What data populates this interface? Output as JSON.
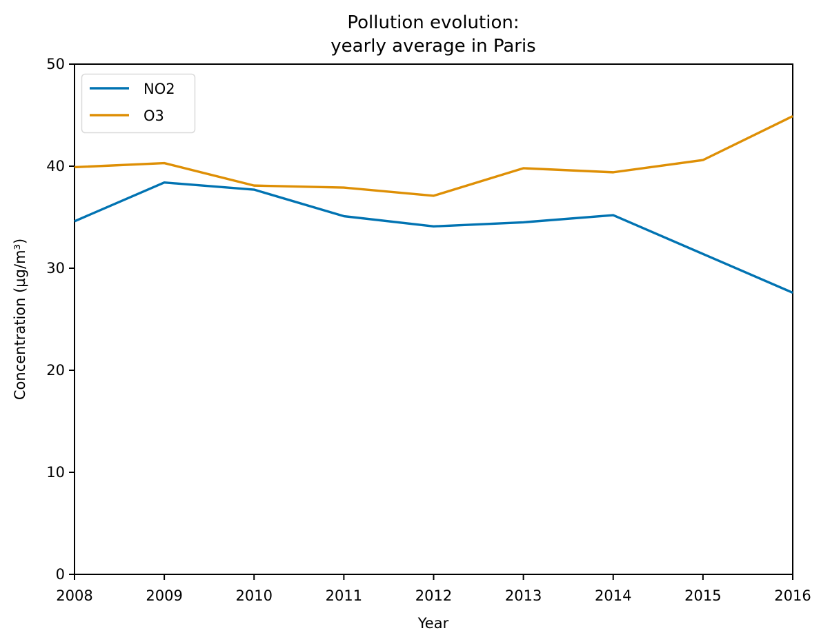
{
  "figure": {
    "background": "#ffffff",
    "title_lines": [
      "Pollution evolution:",
      "yearly average in Paris"
    ]
  },
  "chart_data": {
    "type": "line",
    "title": "Pollution evolution:\nyearly average in Paris",
    "xlabel": "Year",
    "ylabel": "Concentration (µg/m³)",
    "x": [
      2008,
      2009,
      2010,
      2011,
      2012,
      2013,
      2014,
      2015,
      2016
    ],
    "series": [
      {
        "name": "NO2",
        "color": "#0173b2",
        "values": [
          34.6,
          38.4,
          37.7,
          35.1,
          34.1,
          34.5,
          35.2,
          31.4,
          27.6
        ]
      },
      {
        "name": "O3",
        "color": "#de8f05",
        "values": [
          39.9,
          40.3,
          38.1,
          37.9,
          37.1,
          39.8,
          39.4,
          40.6,
          44.9
        ]
      }
    ],
    "xlim": [
      2008,
      2016
    ],
    "ylim": [
      0,
      50
    ],
    "xticks": [
      "2008",
      "2009",
      "2010",
      "2011",
      "2012",
      "2013",
      "2014",
      "2015",
      "2016"
    ],
    "yticks": [
      "0",
      "10",
      "20",
      "30",
      "40",
      "50"
    ],
    "grid": false,
    "legend_position": "upper left",
    "axis_color": "#000000",
    "legend_border_color": "#d9d9d9"
  }
}
